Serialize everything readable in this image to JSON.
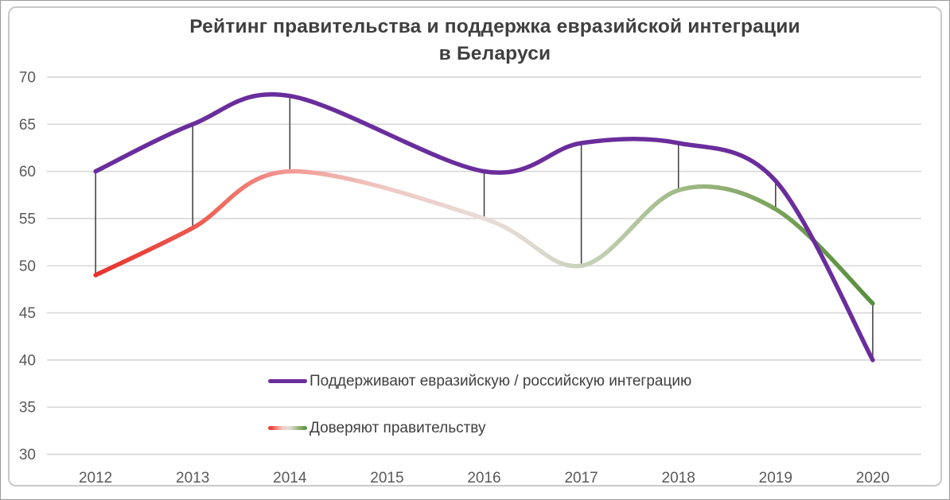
{
  "chart_data": {
    "type": "line",
    "title": "Рейтинг правительства и поддержка евразийской интеграции в Беларуси",
    "title_lines": [
      "Рейтинг правительства и поддержка евразийской интеграции",
      "в Беларуси"
    ],
    "x": [
      "2012",
      "2013",
      "2014",
      "2015",
      "2016",
      "2017",
      "2018",
      "2019",
      "2020"
    ],
    "series": [
      {
        "name": "Поддерживают евразийскую / российскую интеграцию",
        "color": "#6a2d9c",
        "values": [
          60,
          65,
          68,
          null,
          60,
          63,
          63,
          59,
          40
        ]
      },
      {
        "name": "Доверяют правительству",
        "gradient": [
          {
            "offset": 0.0,
            "color": "#e7322d"
          },
          {
            "offset": 0.13,
            "color": "#ec5a50"
          },
          {
            "offset": 0.25,
            "color": "#f29a93"
          },
          {
            "offset": 0.375,
            "color": "#efc9c4"
          },
          {
            "offset": 0.5,
            "color": "#e8dcd7"
          },
          {
            "offset": 0.57,
            "color": "#dcd9cf"
          },
          {
            "offset": 0.625,
            "color": "#c9d2bb"
          },
          {
            "offset": 0.75,
            "color": "#9fbb87"
          },
          {
            "offset": 0.875,
            "color": "#7aa25a"
          },
          {
            "offset": 1.0,
            "color": "#568f3d"
          }
        ],
        "values": [
          49,
          54,
          60,
          null,
          55,
          50,
          58,
          56,
          46
        ]
      }
    ],
    "connector_categories": [
      "2012",
      "2013",
      "2014",
      "2016",
      "2017",
      "2018",
      "2019",
      "2020"
    ],
    "ylim": [
      30,
      70
    ],
    "yticks": [
      70,
      65,
      60,
      55,
      50,
      45,
      40,
      35,
      30
    ],
    "grid": true,
    "legend_position": "inside-bottom-left",
    "colors": {
      "grid": "#d9d9d9",
      "axis_text": "#595959",
      "title_text": "#3f3f3f",
      "legend_text": "#404040",
      "connector": "#3c3c3c",
      "frame_border": "#c9c9c9",
      "background": "#ffffff"
    }
  }
}
